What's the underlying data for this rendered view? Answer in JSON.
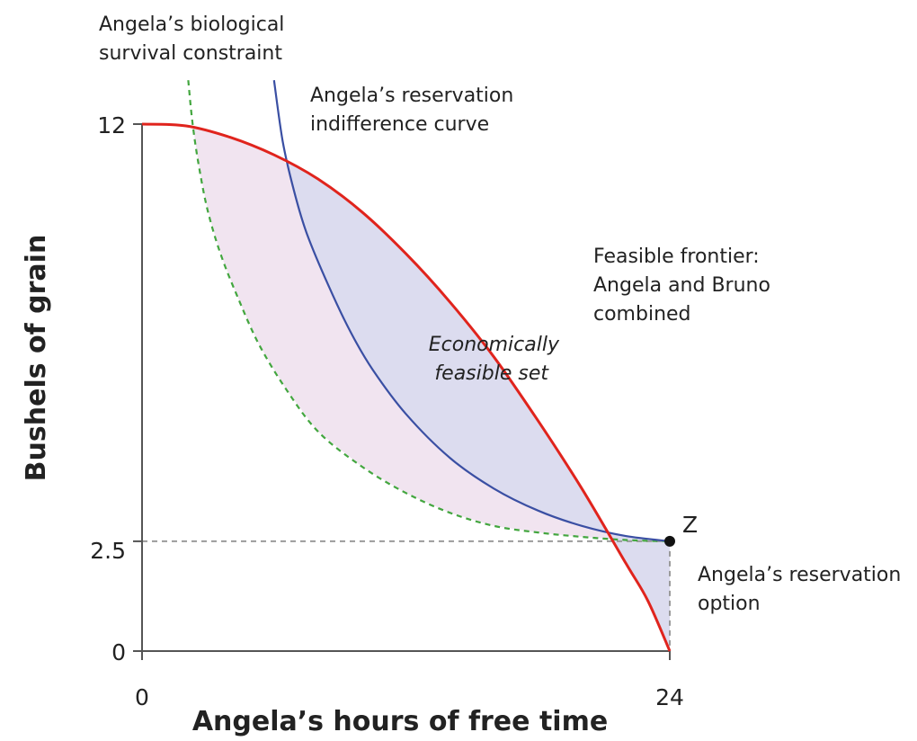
{
  "chart_data": {
    "type": "line",
    "xlabel": "Angela’s hours of free time",
    "ylabel": "Bushels of grain",
    "xlim": [
      0,
      24
    ],
    "ylim": [
      0,
      12
    ],
    "x_ticks": [
      "0",
      "24"
    ],
    "y_ticks": [
      "0",
      "2.5",
      "12"
    ],
    "grid": false,
    "colors": {
      "frontier": "#e0241d",
      "indifference": "#3a4fa3",
      "survival": "#43a63f",
      "economic_fill": "#dcdcef",
      "survival_fill": "#f1e4f0",
      "guide": "#9b9b9b"
    },
    "series": [
      {
        "name": "Feasible frontier: Angela and Bruno combined",
        "style": "solid",
        "points": [
          [
            0,
            12
          ],
          [
            2,
            11.96
          ],
          [
            4,
            11.7
          ],
          [
            6,
            11.3
          ],
          [
            8,
            10.75
          ],
          [
            10,
            10.0
          ],
          [
            12,
            9.05
          ],
          [
            14,
            7.95
          ],
          [
            16,
            6.7
          ],
          [
            18,
            5.25
          ],
          [
            20,
            3.7
          ],
          [
            22,
            2.0
          ],
          [
            23,
            1.15
          ],
          [
            24,
            0
          ]
        ]
      },
      {
        "name": "Angela’s reservation indifference curve",
        "style": "solid",
        "points": [
          [
            6.0,
            13.0
          ],
          [
            6.4,
            11.6
          ],
          [
            6.9,
            10.5
          ],
          [
            7.5,
            9.5
          ],
          [
            8.5,
            8.3
          ],
          [
            9.5,
            7.25
          ],
          [
            10.5,
            6.4
          ],
          [
            12,
            5.4
          ],
          [
            14,
            4.4
          ],
          [
            16,
            3.7
          ],
          [
            18,
            3.2
          ],
          [
            20,
            2.85
          ],
          [
            22,
            2.62
          ],
          [
            24,
            2.5
          ]
        ]
      },
      {
        "name": "Angela’s biological survival constraint",
        "style": "dashed",
        "points": [
          [
            2.1,
            13.0
          ],
          [
            2.3,
            12.0
          ],
          [
            2.6,
            11.0
          ],
          [
            3.0,
            10.0
          ],
          [
            3.6,
            9.0
          ],
          [
            4.4,
            8.0
          ],
          [
            5.3,
            7.0
          ],
          [
            6.5,
            6.0
          ],
          [
            8.0,
            5.0
          ],
          [
            10.0,
            4.2
          ],
          [
            12,
            3.6
          ],
          [
            14,
            3.15
          ],
          [
            16,
            2.85
          ],
          [
            18,
            2.7
          ],
          [
            20,
            2.6
          ],
          [
            22,
            2.53
          ],
          [
            24,
            2.5
          ]
        ]
      }
    ],
    "points": [
      {
        "label": "Z",
        "x": 24,
        "y": 2.5
      }
    ],
    "annotations": {
      "survival_line1": "Angela’s biological",
      "survival_line2": "survival constraint",
      "indifference_line1": "Angela’s reservation",
      "indifference_line2": "indifference curve",
      "frontier_line1": "Feasible frontier:",
      "frontier_line2": "Angela and Bruno",
      "frontier_line3": "combined",
      "set_line1": "Economically",
      "set_line2": "feasible set",
      "reservation_line1": "Angela’s reservation",
      "reservation_line2": "option"
    }
  }
}
